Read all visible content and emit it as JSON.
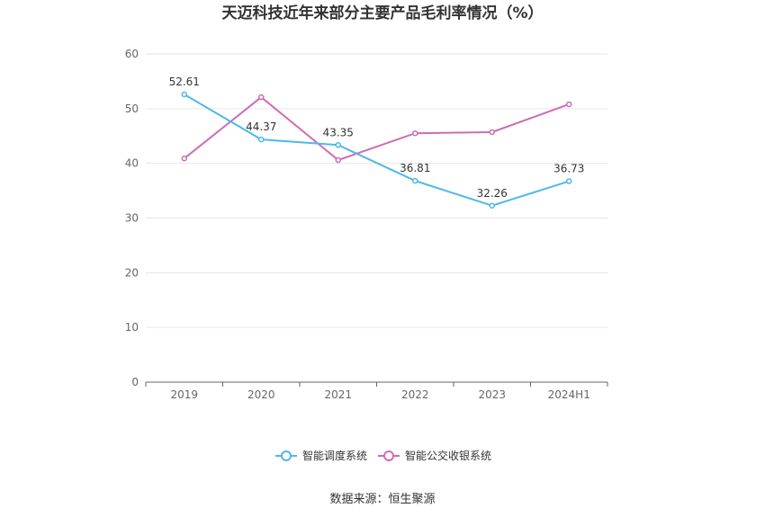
{
  "chart_data": {
    "type": "line",
    "title": "天迈科技近年来部分主要产品毛利率情况（%）",
    "categories": [
      "2019",
      "2020",
      "2021",
      "2022",
      "2023",
      "2024H1"
    ],
    "ylim": [
      0,
      60
    ],
    "yticks": [
      "0",
      "10",
      "20",
      "30",
      "40",
      "50",
      "60"
    ],
    "grid": true,
    "legend_position": "bottom",
    "series": [
      {
        "name": "智能调度系统",
        "color": "#4fb8e8",
        "values": [
          52.61,
          44.37,
          43.35,
          36.81,
          32.26,
          36.73
        ],
        "labels": [
          "52.61",
          "44.37",
          "43.35",
          "36.81",
          "32.26",
          "36.73"
        ]
      },
      {
        "name": "智能公交收银系统",
        "color": "#cf6bb3",
        "values": [
          40.9,
          52.1,
          40.6,
          45.5,
          45.7,
          50.8
        ]
      }
    ],
    "source": "数据来源：恒生聚源"
  }
}
